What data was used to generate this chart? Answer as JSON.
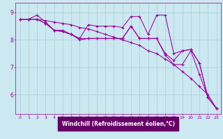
{
  "background_color": "#cce8f0",
  "line_color": "#990099",
  "grid_color": "#aaccdd",
  "xlabel": "Windchill (Refroidissement éolien,°C)",
  "xlabel_bg": "#660066",
  "xlabel_fg": "#ffffff",
  "ylabel_ticks": [
    6,
    7,
    8,
    9
  ],
  "xlim": [
    -0.5,
    23.5
  ],
  "ylim": [
    5.3,
    9.35
  ],
  "series": [
    {
      "x": [
        0,
        1,
        2,
        3,
        4,
        5,
        6,
        7,
        8,
        9,
        10,
        11,
        12,
        13,
        14,
        15,
        16,
        17,
        18,
        19,
        20,
        21,
        22,
        23
      ],
      "y": [
        8.75,
        8.75,
        8.9,
        8.65,
        8.35,
        8.35,
        8.2,
        8.05,
        8.55,
        8.5,
        8.5,
        8.5,
        8.45,
        8.85,
        8.85,
        8.2,
        8.9,
        8.9,
        7.5,
        7.6,
        7.65,
        7.15,
        5.9,
        5.5
      ]
    },
    {
      "x": [
        0,
        1,
        2,
        3,
        4,
        5,
        6,
        7,
        8,
        9,
        10,
        11,
        12,
        13,
        14,
        15,
        16,
        17,
        18,
        19,
        20,
        21,
        22,
        23
      ],
      "y": [
        8.75,
        8.75,
        8.75,
        8.6,
        8.35,
        8.3,
        8.2,
        8.05,
        8.05,
        8.05,
        8.05,
        8.05,
        8.05,
        8.5,
        8.05,
        8.05,
        8.05,
        7.5,
        7.25,
        7.6,
        7.65,
        7.15,
        5.9,
        5.5
      ]
    },
    {
      "x": [
        0,
        1,
        2,
        3,
        4,
        5,
        6,
        7,
        8,
        9,
        10,
        11,
        12,
        13,
        14,
        15,
        16,
        17,
        18,
        19,
        20,
        21,
        22,
        23
      ],
      "y": [
        8.75,
        8.75,
        8.75,
        8.6,
        8.35,
        8.3,
        8.2,
        8.0,
        8.05,
        8.05,
        8.05,
        8.05,
        8.05,
        8.5,
        8.05,
        8.05,
        8.05,
        7.45,
        7.1,
        7.1,
        7.6,
        6.75,
        5.9,
        5.5
      ]
    },
    {
      "x": [
        0,
        1,
        2,
        3,
        4,
        5,
        6,
        7,
        8,
        9,
        10,
        11,
        12,
        13,
        14,
        15,
        16,
        17,
        18,
        19,
        20,
        21,
        22,
        23
      ],
      "y": [
        8.75,
        8.75,
        8.75,
        8.7,
        8.65,
        8.6,
        8.55,
        8.45,
        8.4,
        8.3,
        8.2,
        8.1,
        8.0,
        7.9,
        7.8,
        7.6,
        7.5,
        7.3,
        7.1,
        6.85,
        6.6,
        6.3,
        6.0,
        5.5
      ]
    }
  ],
  "tick_fontsize": 4.5,
  "label_fontsize": 5.5,
  "marker": "+",
  "marker_size": 3,
  "linewidth": 0.75
}
